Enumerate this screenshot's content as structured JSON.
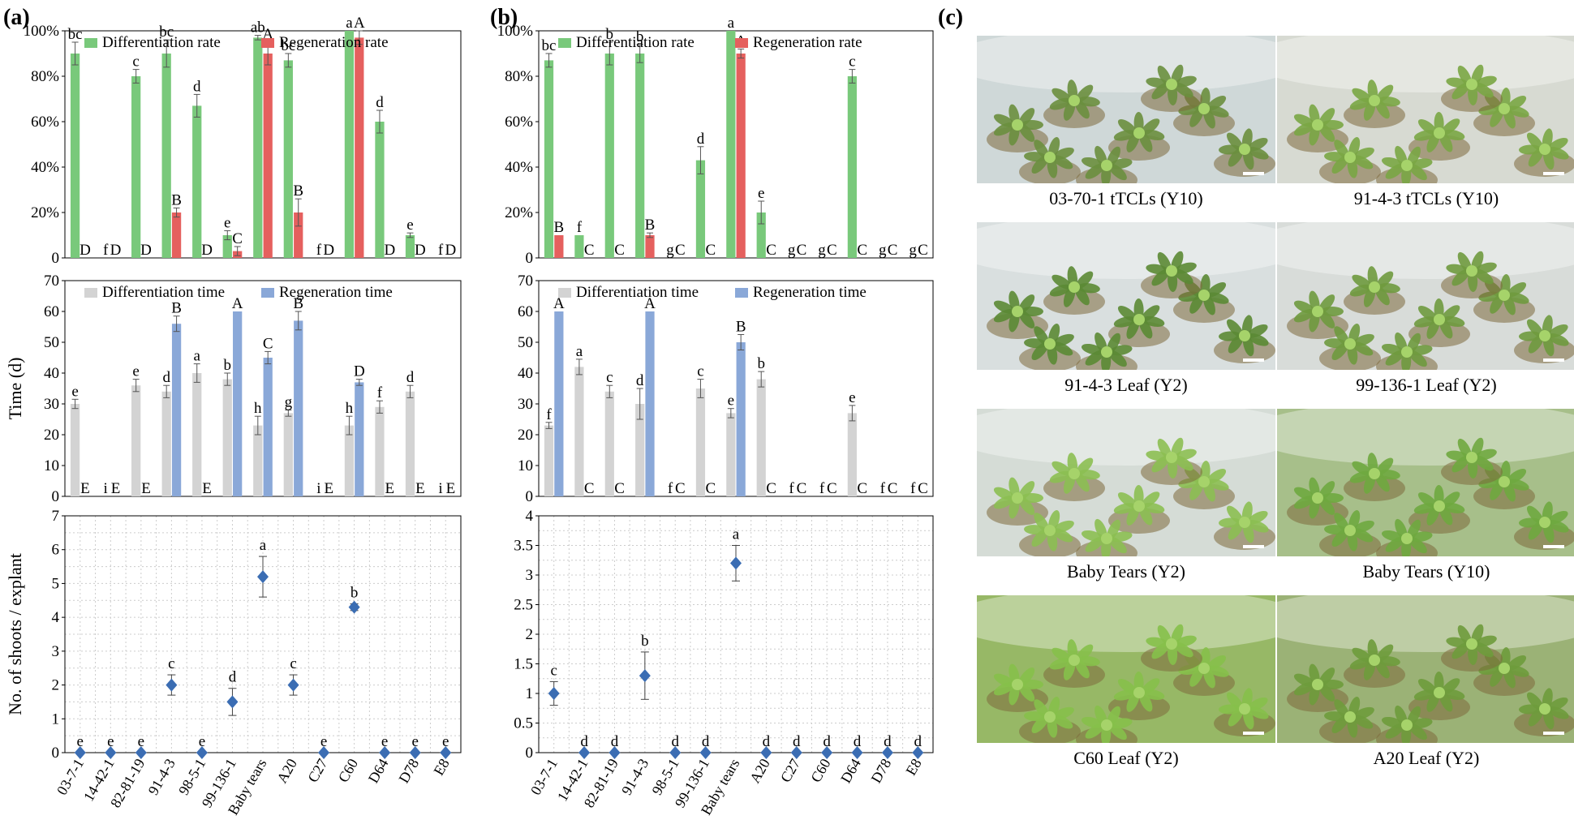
{
  "panels": {
    "a": "(a)",
    "b": "(b)",
    "c": "(c)"
  },
  "categories": [
    "03-7-1",
    "14-42-1",
    "82-81-19",
    "91-4-3",
    "98-5-1",
    "99-136-1",
    "Baby tears",
    "A20",
    "C27",
    "C60",
    "D64",
    "D78",
    "E8"
  ],
  "legend": {
    "diff_rate": "Differentiation rate",
    "regen_rate": "Regeneration rate",
    "diff_time": "Differentiation time",
    "regen_time": "Regeneration time"
  },
  "colors": {
    "diff_rate": "#79c97b",
    "regen_rate": "#e5605e",
    "diff_time": "#d3d3d3",
    "regen_time": "#8aa8d8",
    "shoots": "#3b6db3"
  },
  "axis_labels": {
    "time": "Time (d)",
    "shoots": "No. of shoots / explant"
  },
  "chart_data": [
    {
      "panel": "(a)",
      "type": "bar",
      "subplot": "rate",
      "ylim": [
        0,
        100
      ],
      "yticks": [
        "0",
        "20%",
        "40%",
        "60%",
        "80%",
        "100%"
      ],
      "series": [
        {
          "name": "Differentiation rate",
          "values": [
            90,
            0,
            80,
            90,
            67,
            10,
            97,
            87,
            0,
            100,
            60,
            10,
            0
          ],
          "errors": [
            5,
            0,
            3,
            6,
            5,
            2,
            1,
            3,
            0,
            0,
            5,
            1,
            0
          ],
          "labels": [
            "bc",
            "f",
            "c",
            "bc",
            "d",
            "e",
            "ab",
            "bc",
            "f",
            "a",
            "d",
            "e",
            "f"
          ]
        },
        {
          "name": "Regeneration rate",
          "values": [
            0,
            0,
            0,
            20,
            0,
            3,
            90,
            20,
            0,
            97,
            0,
            0,
            0
          ],
          "errors": [
            0,
            0,
            0,
            2,
            0,
            2,
            5,
            6,
            0,
            3,
            0,
            0,
            0
          ],
          "labels": [
            "D",
            "D",
            "D",
            "B",
            "D",
            "C",
            "A",
            "B",
            "D",
            "A",
            "D",
            "D",
            "D"
          ]
        }
      ]
    },
    {
      "panel": "(a)",
      "type": "bar",
      "subplot": "time",
      "ylabel": "Time (d)",
      "ylim": [
        0,
        70
      ],
      "yticks": [
        "0",
        "10",
        "20",
        "30",
        "40",
        "50",
        "60",
        "70"
      ],
      "series": [
        {
          "name": "Differentiation time",
          "values": [
            30,
            0,
            36,
            34,
            40,
            38,
            23,
            27,
            0,
            23,
            29,
            34,
            0
          ],
          "errors": [
            1.5,
            0,
            2,
            2,
            3,
            2,
            3,
            1,
            0,
            3,
            2,
            2,
            0
          ],
          "labels": [
            "e",
            "i",
            "e",
            "d",
            "a",
            "b",
            "h",
            "g",
            "i",
            "h",
            "f",
            "d",
            "i"
          ]
        },
        {
          "name": "Regeneration time",
          "values": [
            0,
            0,
            0,
            56,
            0,
            60,
            45,
            57,
            0,
            37,
            0,
            0,
            0
          ],
          "errors": [
            0,
            0,
            0,
            2.5,
            0,
            0,
            2,
            3,
            0,
            1,
            0,
            0,
            0
          ],
          "labels": [
            "E",
            "E",
            "E",
            "B",
            "E",
            "A",
            "C",
            "B",
            "E",
            "D",
            "E",
            "E",
            "E"
          ]
        }
      ]
    },
    {
      "panel": "(a)",
      "type": "scatter",
      "subplot": "shoots",
      "ylabel": "No. of shoots / explant",
      "ylim": [
        0,
        7
      ],
      "yticks": [
        "0",
        "1",
        "2",
        "3",
        "4",
        "5",
        "6",
        "7"
      ],
      "series": [
        {
          "name": "Shoots per explant",
          "values": [
            0,
            0,
            0,
            2.0,
            0,
            1.5,
            5.2,
            2.0,
            0,
            4.3,
            0,
            0,
            0
          ],
          "errors": [
            0,
            0,
            0,
            0.3,
            0,
            0.4,
            0.6,
            0.3,
            0,
            0.1,
            0,
            0,
            0
          ],
          "labels": [
            "e",
            "e",
            "e",
            "c",
            "e",
            "d",
            "a",
            "c",
            "e",
            "b",
            "e",
            "e",
            "e"
          ]
        }
      ]
    },
    {
      "panel": "(b)",
      "type": "bar",
      "subplot": "rate",
      "ylim": [
        0,
        100
      ],
      "yticks": [
        "0",
        "20%",
        "40%",
        "60%",
        "80%",
        "100%"
      ],
      "series": [
        {
          "name": "Differentiation rate",
          "values": [
            87,
            10,
            90,
            90,
            0,
            43,
            100,
            20,
            0,
            0,
            80,
            0,
            0
          ],
          "errors": [
            3,
            0,
            5,
            4,
            0,
            6,
            0,
            5,
            0,
            0,
            3,
            0,
            0
          ],
          "labels": [
            "bc",
            "f",
            "b",
            "b",
            "g",
            "d",
            "a",
            "e",
            "g",
            "g",
            "c",
            "g",
            "g"
          ]
        },
        {
          "name": "Regeneration rate",
          "values": [
            10,
            0,
            0,
            10,
            0,
            0,
            90,
            0,
            0,
            0,
            0,
            0,
            0
          ],
          "errors": [
            0,
            0,
            0,
            1,
            0,
            0,
            2,
            0,
            0,
            0,
            0,
            0,
            0
          ],
          "labels": [
            "B",
            "C",
            "C",
            "B",
            "C",
            "C",
            "A",
            "C",
            "C",
            "C",
            "C",
            "C",
            "C"
          ]
        }
      ]
    },
    {
      "panel": "(b)",
      "type": "bar",
      "subplot": "time",
      "ylabel": "Time (d)",
      "ylim": [
        0,
        70
      ],
      "yticks": [
        "0",
        "10",
        "20",
        "30",
        "40",
        "50",
        "60",
        "70"
      ],
      "series": [
        {
          "name": "Differentiation time",
          "values": [
            23,
            42,
            34,
            30,
            0,
            35,
            27,
            38,
            0,
            0,
            27,
            0,
            0
          ],
          "errors": [
            1,
            2.5,
            2,
            5,
            0,
            3,
            1.5,
            2.5,
            0,
            0,
            2.5,
            0,
            0
          ],
          "labels": [
            "f",
            "a",
            "c",
            "d",
            "f",
            "c",
            "e",
            "b",
            "f",
            "f",
            "e",
            "f",
            "f"
          ]
        },
        {
          "name": "Regeneration time",
          "values": [
            60,
            0,
            0,
            60,
            0,
            0,
            50,
            0,
            0,
            0,
            0,
            0,
            0
          ],
          "errors": [
            0,
            0,
            0,
            0,
            0,
            0,
            2.5,
            0,
            0,
            0,
            0,
            0,
            0
          ],
          "labels": [
            "A",
            "C",
            "C",
            "A",
            "C",
            "C",
            "B",
            "C",
            "C",
            "C",
            "C",
            "C",
            "C"
          ]
        }
      ]
    },
    {
      "panel": "(b)",
      "type": "scatter",
      "subplot": "shoots",
      "ylabel": "No. of shoots / explant",
      "ylim": [
        0,
        4
      ],
      "yticks": [
        "0",
        "0.5",
        "1",
        "1.5",
        "2",
        "2.5",
        "3",
        "3.5",
        "4"
      ],
      "series": [
        {
          "name": "Shoots per explant",
          "values": [
            1.0,
            0,
            0,
            1.3,
            0,
            0,
            3.2,
            0,
            0,
            0,
            0,
            0,
            0
          ],
          "errors": [
            0.2,
            0,
            0,
            0.4,
            0,
            0,
            0.3,
            0,
            0,
            0,
            0,
            0,
            0
          ],
          "labels": [
            "c",
            "d",
            "d",
            "b",
            "d",
            "d",
            "a",
            "d",
            "d",
            "d",
            "d",
            "d",
            "d"
          ]
        }
      ]
    }
  ],
  "photos": [
    {
      "caption": "03-70-1 tTCLs (Y10)",
      "tone": "#6a8f3e",
      "bg": "#cfd8d8"
    },
    {
      "caption": "91-4-3  tTCLs (Y10)",
      "tone": "#7aa644",
      "bg": "#d7dad2"
    },
    {
      "caption": "91-4-3 Leaf (Y2)",
      "tone": "#5b8a34",
      "bg": "#d9dfdf"
    },
    {
      "caption": "99-136-1 Leaf (Y2)",
      "tone": "#6f9a3e",
      "bg": "#d8dcd9"
    },
    {
      "caption": "Baby Tears (Y2)",
      "tone": "#8cbf52",
      "bg": "#d5dcd6"
    },
    {
      "caption": "Baby Tears (Y10)",
      "tone": "#6fa83f",
      "bg": "#a7bf8a"
    },
    {
      "caption": "C60 Leaf (Y2)",
      "tone": "#86c04a",
      "bg": "#97b866"
    },
    {
      "caption": "A20 Leaf (Y2)",
      "tone": "#6e9b3c",
      "bg": "#9bb276"
    }
  ]
}
